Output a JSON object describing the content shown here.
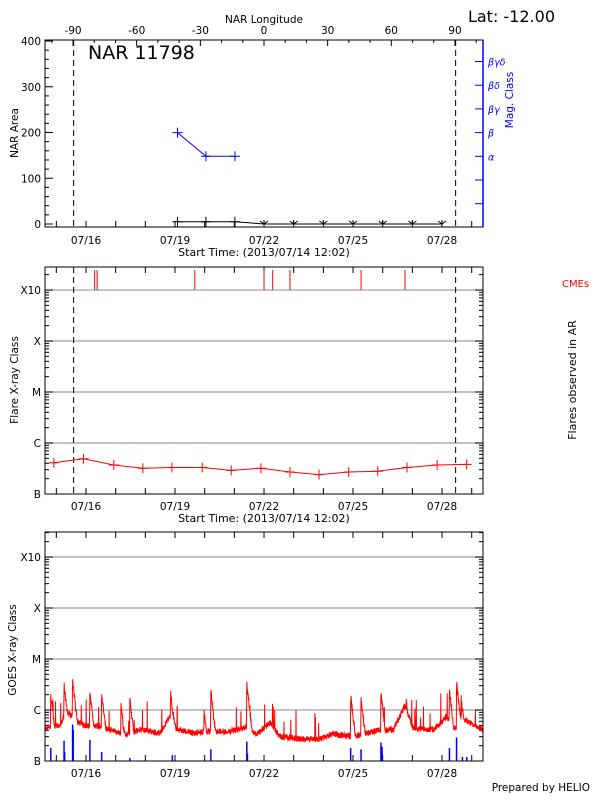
{
  "header": {
    "lat_label": "Lat: -12.00"
  },
  "footer": {
    "credit": "Prepared by HELIO"
  },
  "colors": {
    "axis": "#000000",
    "grid": "#a0a0a0",
    "mag_class": "#0000ff",
    "flare": "#ff0000",
    "cme": "#ff0000",
    "goes": "#ff0000",
    "flare_marker": "#0000ff"
  },
  "chart_data": [
    {
      "type": "line",
      "title": "NAR 11798",
      "top_axis_label": "NAR Longitude",
      "top_ticks": [
        "-90",
        "-60",
        "-30",
        "0",
        "30",
        "60",
        "90"
      ],
      "ylabel": "NAR Area",
      "ylim": [
        0,
        400
      ],
      "yticks": [
        "0",
        "100",
        "200",
        "300",
        "400"
      ],
      "y2label": "Mag. Class",
      "y2_ticks": [
        "α",
        "β",
        "βγ",
        "βδ",
        "βγδ"
      ],
      "xlabel": "Start Time: (2013/07/14 12:02)",
      "xticks": [
        "07/16",
        "07/19",
        "07/22",
        "07/25",
        "07/28"
      ],
      "limb_crossings": [
        "07/15 14:00",
        "07/28 11:00"
      ],
      "mag_class_series": [
        {
          "x": "07/19 02:00",
          "class": "β"
        },
        {
          "x": "07/20 01:00",
          "class": "α"
        },
        {
          "x": "07/21 00:30",
          "class": "α"
        }
      ],
      "area_series": [
        {
          "x": "07/19 02:00",
          "area": 5
        },
        {
          "x": "07/20 01:00",
          "area": 5
        },
        {
          "x": "07/21 00:30",
          "area": 5
        },
        {
          "x": "07/22 00:00",
          "area": 0
        },
        {
          "x": "07/23 00:00",
          "area": 0
        },
        {
          "x": "07/24 00:00",
          "area": 0
        },
        {
          "x": "07/25 00:00",
          "area": 0
        },
        {
          "x": "07/26 00:00",
          "area": 0
        },
        {
          "x": "07/27 00:00",
          "area": 0
        },
        {
          "x": "07/28 00:00",
          "area": 0
        }
      ]
    },
    {
      "type": "line",
      "ylabel": "Flare X-ray Class",
      "y2label": "Flares observed in AR",
      "yticks": [
        "B",
        "C",
        "M",
        "X",
        "X10"
      ],
      "xlabel": "Start Time: (2013/07/14 12:02)",
      "xticks": [
        "07/16",
        "07/19",
        "07/22",
        "07/25",
        "07/28"
      ],
      "grid": true,
      "limb_crossings": [
        "07/15 14:00",
        "07/28 11:00"
      ],
      "cme_label": "CMEs",
      "cmes": [
        "07/16 07:00",
        "07/16 09:00",
        "07/19 16:00",
        "07/22 00:00",
        "07/22 07:00",
        "07/22 21:00",
        "07/25 06:30",
        "07/26 18:00"
      ],
      "series": [
        {
          "x": "07/14 22:00",
          "class": "B4.1"
        },
        {
          "x": "07/15 22:00",
          "class": "B4.9"
        },
        {
          "x": "07/16 22:30",
          "class": "B3.7"
        },
        {
          "x": "07/17 22:00",
          "class": "B3.2"
        },
        {
          "x": "07/18 21:30",
          "class": "B3.3"
        },
        {
          "x": "07/19 22:00",
          "class": "B3.3"
        },
        {
          "x": "07/20 21:30",
          "class": "B2.9"
        },
        {
          "x": "07/21 21:30",
          "class": "B3.2"
        },
        {
          "x": "07/22 21:00",
          "class": "B2.7"
        },
        {
          "x": "07/23 20:30",
          "class": "B2.4"
        },
        {
          "x": "07/24 20:30",
          "class": "B2.7"
        },
        {
          "x": "07/25 20:00",
          "class": "B2.8"
        },
        {
          "x": "07/26 19:40",
          "class": "B3.3"
        },
        {
          "x": "07/27 20:00",
          "class": "B3.7"
        },
        {
          "x": "07/28 20:00",
          "class": "B3.8"
        }
      ]
    },
    {
      "type": "line",
      "ylabel": "GOES X-ray Class",
      "yticks": [
        "B",
        "C",
        "M",
        "X",
        "X10"
      ],
      "xticks": [
        "07/16",
        "07/19",
        "07/22",
        "07/25",
        "07/28"
      ],
      "grid": true,
      "goes_background": [
        {
          "x": "07/14 15:00",
          "class": "B4.4"
        },
        {
          "x": "07/15 03:00",
          "class": "B5.2"
        },
        {
          "x": "07/15 08:30",
          "class": "B9.4"
        },
        {
          "x": "07/15 16:30",
          "class": "B6.0"
        },
        {
          "x": "07/16 00:00",
          "class": "B4.8"
        },
        {
          "x": "07/16 11:00",
          "class": "B4.8"
        },
        {
          "x": "07/16 22:00",
          "class": "B3.8"
        },
        {
          "x": "07/17 09:00",
          "class": "B3.3"
        },
        {
          "x": "07/17 19:40",
          "class": "B4.1"
        },
        {
          "x": "07/18 12:00",
          "class": "B3.5"
        },
        {
          "x": "07/18 20:00",
          "class": "B7.5"
        },
        {
          "x": "07/19 01:30",
          "class": "B4.1"
        },
        {
          "x": "07/19 15:00",
          "class": "B3.5"
        },
        {
          "x": "07/20 01:40",
          "class": "B3.8"
        },
        {
          "x": "07/20 18:00",
          "class": "B3.8"
        },
        {
          "x": "07/21 04:30",
          "class": "B4.1"
        },
        {
          "x": "07/21 10:00",
          "class": "B4.8"
        },
        {
          "x": "07/21 18:00",
          "class": "B3.3"
        },
        {
          "x": "07/22 05:00",
          "class": "B5.6"
        },
        {
          "x": "07/22 13:00",
          "class": "B3.0"
        },
        {
          "x": "07/23 05:00",
          "class": "B2.7"
        },
        {
          "x": "07/23 21:20",
          "class": "B2.7"
        },
        {
          "x": "07/24 08:00",
          "class": "B3.4"
        },
        {
          "x": "07/24 21:40",
          "class": "B3.0"
        },
        {
          "x": "07/25 11:00",
          "class": "B3.5"
        },
        {
          "x": "07/25 22:00",
          "class": "B4.1"
        },
        {
          "x": "07/26 08:40",
          "class": "B4.1"
        },
        {
          "x": "07/26 18:00",
          "class": "C1.2"
        },
        {
          "x": "07/27 00:40",
          "class": "B4.4"
        },
        {
          "x": "07/27 17:00",
          "class": "B4.1"
        },
        {
          "x": "07/28 04:00",
          "class": "B7.5"
        },
        {
          "x": "07/28 09:00",
          "class": "B4.1"
        },
        {
          "x": "07/28 17:20",
          "class": "B6.5"
        },
        {
          "x": "07/29 09:20",
          "class": "B4.1"
        }
      ],
      "goes_peaks": [
        {
          "x": "07/14 19:30",
          "class": "C1.9"
        },
        {
          "x": "07/15 06:15",
          "class": "C3.1"
        },
        {
          "x": "07/15 13:10",
          "class": "C3.6"
        },
        {
          "x": "07/16 03:10",
          "class": "C2.2"
        },
        {
          "x": "07/16 12:40",
          "class": "C2.1"
        },
        {
          "x": "07/17 04:20",
          "class": "C1.2"
        },
        {
          "x": "07/17 11:30",
          "class": "C1.6"
        },
        {
          "x": "07/18 20:25",
          "class": "C2.3"
        },
        {
          "x": "07/19 23:30",
          "class": "C1.0"
        },
        {
          "x": "07/20 05:00",
          "class": "C2.3"
        },
        {
          "x": "07/21 10:05",
          "class": "C3.2"
        },
        {
          "x": "07/24 22:05",
          "class": "C1.9"
        },
        {
          "x": "07/25 06:30",
          "class": "C1.7"
        },
        {
          "x": "07/25 22:35",
          "class": "C2.2"
        },
        {
          "x": "07/26 19:00",
          "class": "C1.6"
        },
        {
          "x": "07/28 06:00",
          "class": "C2.3"
        },
        {
          "x": "07/28 11:45",
          "class": "C3.3"
        },
        {
          "x": "07/28 15:50",
          "class": "C1.5"
        }
      ],
      "flare_markers": [
        {
          "x": "07/14 19:30",
          "class": "B1.8"
        },
        {
          "x": "07/15 06:15",
          "class": "B2.5"
        },
        {
          "x": "07/15 06:45",
          "class": "B1.5"
        },
        {
          "x": "07/15 13:10",
          "class": "B5.2"
        },
        {
          "x": "07/15 13:40",
          "class": "B4.1"
        },
        {
          "x": "07/16 03:10",
          "class": "B2.6"
        },
        {
          "x": "07/16 12:40",
          "class": "B1.5"
        },
        {
          "x": "07/17 11:30",
          "class": "B1.15"
        },
        {
          "x": "07/18 21:50",
          "class": "B1.3"
        },
        {
          "x": "07/20 05:00",
          "class": "B1.7"
        },
        {
          "x": "07/21 10:05",
          "class": "B2.4"
        },
        {
          "x": "07/21 10:35",
          "class": "B1.4"
        },
        {
          "x": "07/24 22:05",
          "class": "B1.8"
        },
        {
          "x": "07/25 06:30",
          "class": "B1.7"
        },
        {
          "x": "07/25 22:35",
          "class": "B2.3"
        },
        {
          "x": "07/25 23:30",
          "class": "B1.9"
        },
        {
          "x": "07/28 06:00",
          "class": "B1.8"
        },
        {
          "x": "07/28 11:45",
          "class": "B2.9"
        },
        {
          "x": "07/28 16:30",
          "class": "B1.2"
        },
        {
          "x": "07/28 20:00",
          "class": "B1.2"
        }
      ]
    }
  ]
}
